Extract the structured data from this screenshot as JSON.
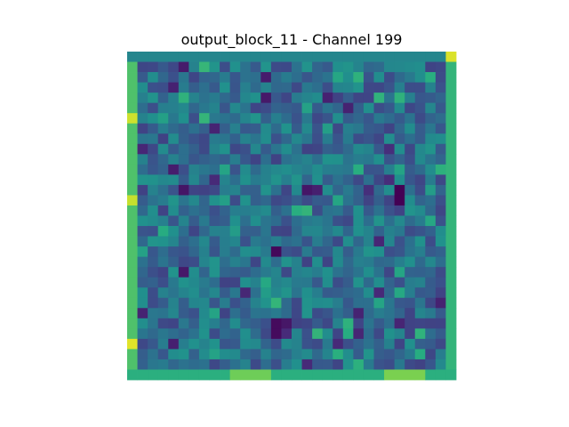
{
  "chart_data": {
    "type": "heatmap",
    "title": "output_block_11 - Channel 199",
    "colormap": "viridis",
    "axes_visible": false,
    "rows": 32,
    "cols": 32,
    "value_range": [
      0,
      1
    ],
    "seed": 199,
    "regions": [
      {
        "r0": 0,
        "r1": 31,
        "c0": 0,
        "c1": 0,
        "v": 0.72
      },
      {
        "r0": 0,
        "r1": 31,
        "c0": 31,
        "c1": 31,
        "v": 0.66
      },
      {
        "r0": 31,
        "r1": 31,
        "c0": 0,
        "c1": 31,
        "v": 0.64
      },
      {
        "r0": 0,
        "r1": 0,
        "c0": 0,
        "c1": 31,
        "v": 0.46
      },
      {
        "r0": 6,
        "r1": 6,
        "c0": 0,
        "c1": 0,
        "v": 0.93
      },
      {
        "r0": 14,
        "r1": 14,
        "c0": 0,
        "c1": 0,
        "v": 0.92
      },
      {
        "r0": 28,
        "r1": 28,
        "c0": 0,
        "c1": 0,
        "v": 0.96
      },
      {
        "r0": 0,
        "r1": 0,
        "c0": 31,
        "c1": 31,
        "v": 0.95
      },
      {
        "r0": 31,
        "r1": 31,
        "c0": 10,
        "c1": 13,
        "v": 0.78
      },
      {
        "r0": 31,
        "r1": 31,
        "c0": 25,
        "c1": 28,
        "v": 0.8
      },
      {
        "r0": 13,
        "r1": 14,
        "c0": 26,
        "c1": 26,
        "v": 0.0
      },
      {
        "r0": 19,
        "r1": 19,
        "c0": 14,
        "c1": 14,
        "v": 0.02
      },
      {
        "r0": 26,
        "r1": 27,
        "c0": 14,
        "c1": 14,
        "v": 0.03
      }
    ]
  }
}
